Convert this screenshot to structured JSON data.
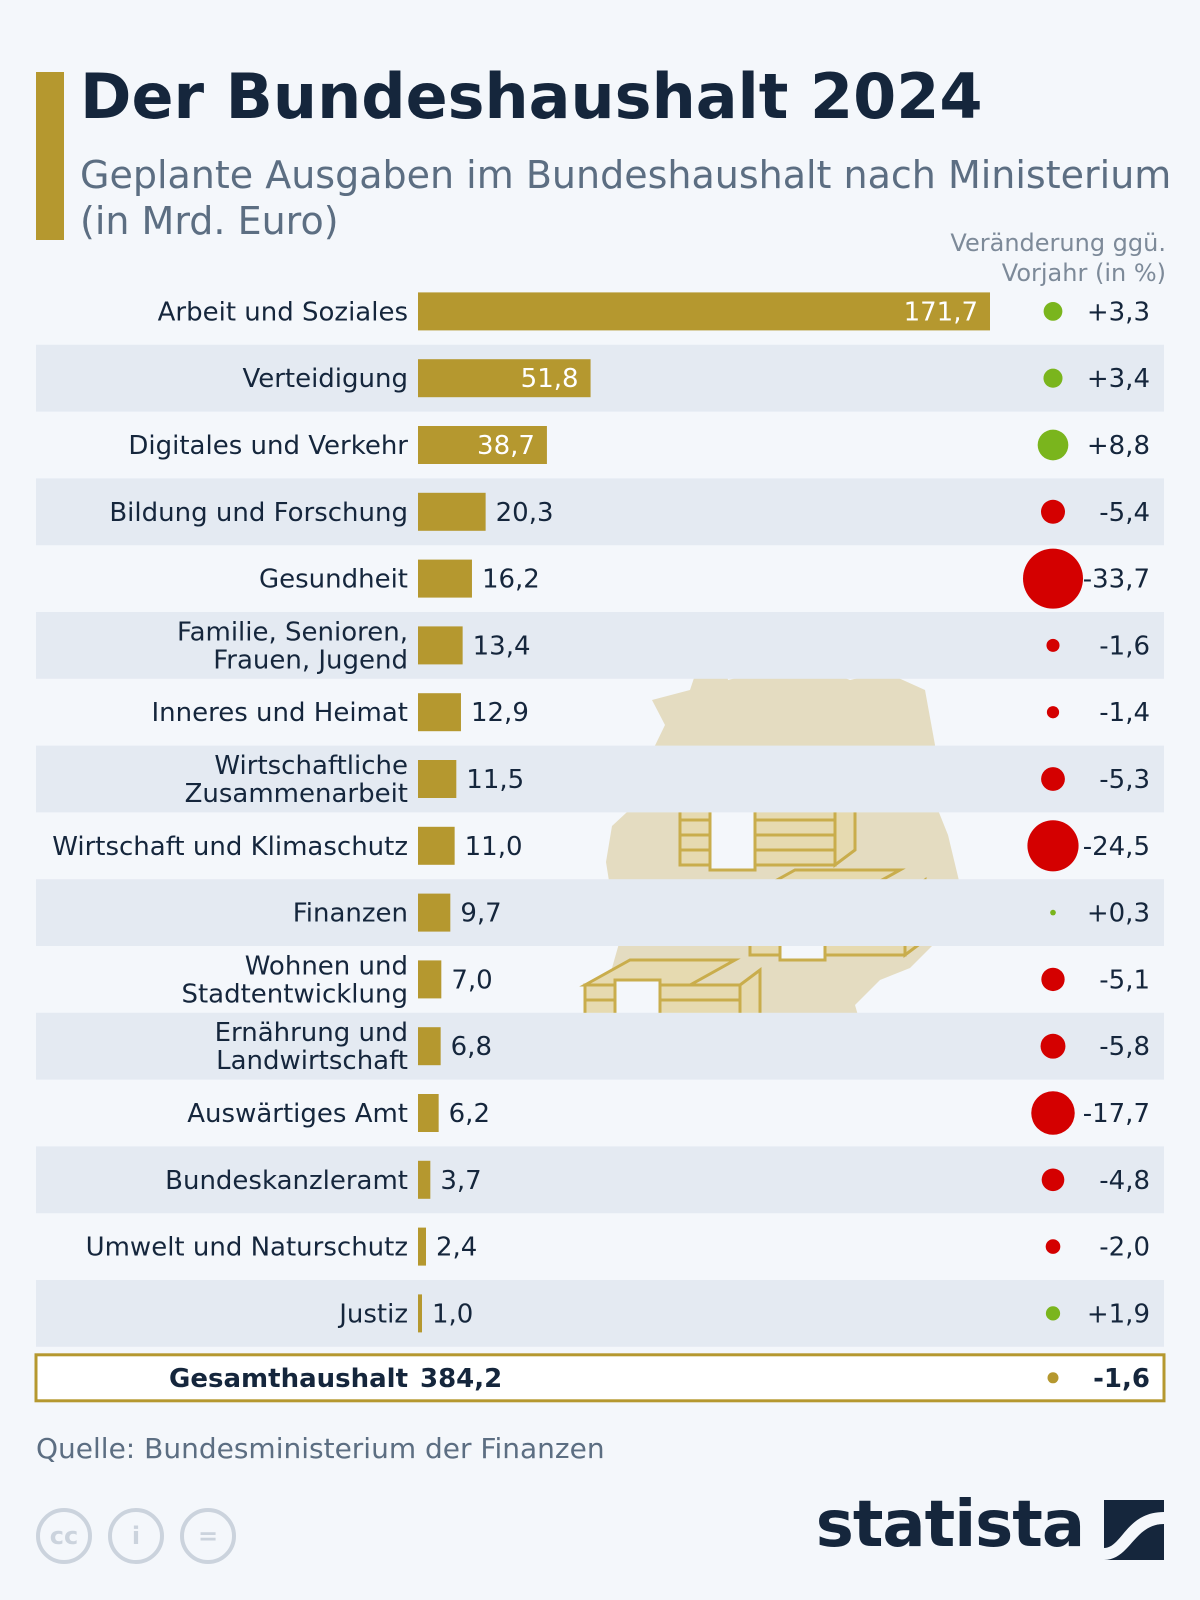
{
  "title": "Der Bundeshaushalt 2024",
  "subtitle": "Geplante Ausgaben im Bundeshaushalt nach Ministerium (in Mrd. Euro)",
  "change_header": [
    "Veränderung ggü.",
    "Vorjahr (in %)"
  ],
  "source": "Quelle: Bundesministerium der Finanzen",
  "brand": "statista",
  "cc_icons": [
    "cc-icon",
    "attribution-icon",
    "no-derivatives-icon"
  ],
  "colors": {
    "bar": "#b5982f",
    "positive": "#7ab51d",
    "negative": "#d40000",
    "total_dot": "#b5982f",
    "stripe": "#e4eaf2",
    "text": "#15263c"
  },
  "chart_data": {
    "type": "bar",
    "orientation": "horizontal",
    "title": "Der Bundeshaushalt 2024",
    "unit": "Mrd. Euro",
    "categories": [
      [
        "Arbeit und Soziales"
      ],
      [
        "Verteidigung"
      ],
      [
        "Digitales und Verkehr"
      ],
      [
        "Bildung und Forschung"
      ],
      [
        "Gesundheit"
      ],
      [
        "Familie, Senioren,",
        "Frauen, Jugend"
      ],
      [
        "Inneres und Heimat"
      ],
      [
        "Wirtschaftliche",
        "Zusammenarbeit"
      ],
      [
        "Wirtschaft und Klimaschutz"
      ],
      [
        "Finanzen"
      ],
      [
        "Wohnen und",
        "Stadtentwicklung"
      ],
      [
        "Ernährung und",
        "Landwirtschaft"
      ],
      [
        "Auswärtiges Amt"
      ],
      [
        "Bundeskanzleramt"
      ],
      [
        "Umwelt und Naturschutz"
      ],
      [
        "Justiz"
      ]
    ],
    "values": [
      171.7,
      51.8,
      38.7,
      20.3,
      16.2,
      13.4,
      12.9,
      11.5,
      11.0,
      9.7,
      7.0,
      6.8,
      6.2,
      3.7,
      2.4,
      1.0
    ],
    "value_labels": [
      "171,7",
      "51,8",
      "38,7",
      "20,3",
      "16,2",
      "13,4",
      "12,9",
      "11,5",
      "11,0",
      "9,7",
      "7,0",
      "6,8",
      "6,2",
      "3,7",
      "2,4",
      "1,0"
    ],
    "change_pct": [
      3.3,
      3.4,
      8.8,
      -5.4,
      -33.7,
      -1.6,
      -1.4,
      -5.3,
      -24.5,
      0.3,
      -5.1,
      -5.8,
      -17.7,
      -4.8,
      -2.0,
      1.9
    ],
    "change_labels": [
      "+3,3",
      "+3,4",
      "+8,8",
      "-5,4",
      "-33,7",
      "-1,6",
      "-1,4",
      "-5,3",
      "-24,5",
      "+0,3",
      "-5,1",
      "-5,8",
      "-17,7",
      "-4,8",
      "-2,0",
      "+1,9"
    ],
    "total": {
      "label": "Gesamthaushalt",
      "value": 384.2,
      "value_label": "384,2",
      "change_pct": -1.6,
      "change_label": "-1,6"
    },
    "xlim": [
      0,
      171.7
    ]
  }
}
